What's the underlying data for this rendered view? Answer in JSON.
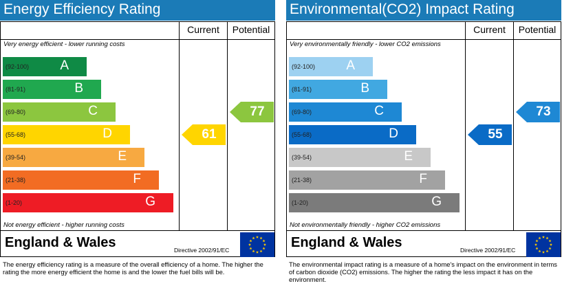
{
  "chart_data": [
    {
      "type": "bar",
      "title": "Energy Efficiency Rating",
      "columns": [
        "Current",
        "Potential"
      ],
      "top_caption": "Very energy efficient - lower running costs",
      "bottom_caption": "Not energy efficient - higher running costs",
      "categories": [
        "A",
        "B",
        "C",
        "D",
        "E",
        "F",
        "G"
      ],
      "bands": [
        {
          "letter": "A",
          "range": "(92-100)",
          "color": "#0f8a45"
        },
        {
          "letter": "B",
          "range": "(81-91)",
          "color": "#20a84f"
        },
        {
          "letter": "C",
          "range": "(69-80)",
          "color": "#8cc63f"
        },
        {
          "letter": "D",
          "range": "(55-68)",
          "color": "#ffd500"
        },
        {
          "letter": "E",
          "range": "(39-54)",
          "color": "#f7a941"
        },
        {
          "letter": "F",
          "range": "(21-38)",
          "color": "#f26c23"
        },
        {
          "letter": "G",
          "range": "(1-20)",
          "color": "#ee1c25"
        }
      ],
      "current": {
        "value": 61,
        "band": "D",
        "color": "#ffd500"
      },
      "potential": {
        "value": 77,
        "band": "C",
        "color": "#8cc63f"
      },
      "region": "England & Wales",
      "directive": "Directive 2002/91/EC",
      "footnote": "The energy efficiency rating is a measure of the overall efficiency of a home. The higher the rating the more energy efficient the home is and the lower the fuel bills will be."
    },
    {
      "type": "bar",
      "title": "Environmental(CO2) Impact Rating",
      "columns": [
        "Current",
        "Potential"
      ],
      "top_caption": "Very environmentally friendly - lower CO2 emissions",
      "bottom_caption": "Not environmentally friendly - higher CO2 emissions",
      "categories": [
        "A",
        "B",
        "C",
        "D",
        "E",
        "F",
        "G"
      ],
      "bands": [
        {
          "letter": "A",
          "range": "(92-100)",
          "color": "#9dd1f1"
        },
        {
          "letter": "B",
          "range": "(81-91)",
          "color": "#41a8e1"
        },
        {
          "letter": "C",
          "range": "(69-80)",
          "color": "#1e88d4"
        },
        {
          "letter": "D",
          "range": "(55-68)",
          "color": "#0a6bc6"
        },
        {
          "letter": "E",
          "range": "(39-54)",
          "color": "#c8c8c8"
        },
        {
          "letter": "F",
          "range": "(21-38)",
          "color": "#a2a2a2"
        },
        {
          "letter": "G",
          "range": "(1-20)",
          "color": "#7b7b7b"
        }
      ],
      "current": {
        "value": 55,
        "band": "D",
        "color": "#0a6bc6"
      },
      "potential": {
        "value": 73,
        "band": "C",
        "color": "#1e88d4"
      },
      "region": "England & Wales",
      "directive": "Directive 2002/91/EC",
      "footnote": "The environmental impact rating is a measure of a home's impact on the environment in terms of carbon dioxide (CO2) emissions. The higher the rating the less impact it has on the environment."
    }
  ],
  "colors": {
    "title_bar": "#1b7bb7",
    "eu_flag_blue": "#0033a0",
    "eu_flag_stars": "#ffcc00"
  }
}
